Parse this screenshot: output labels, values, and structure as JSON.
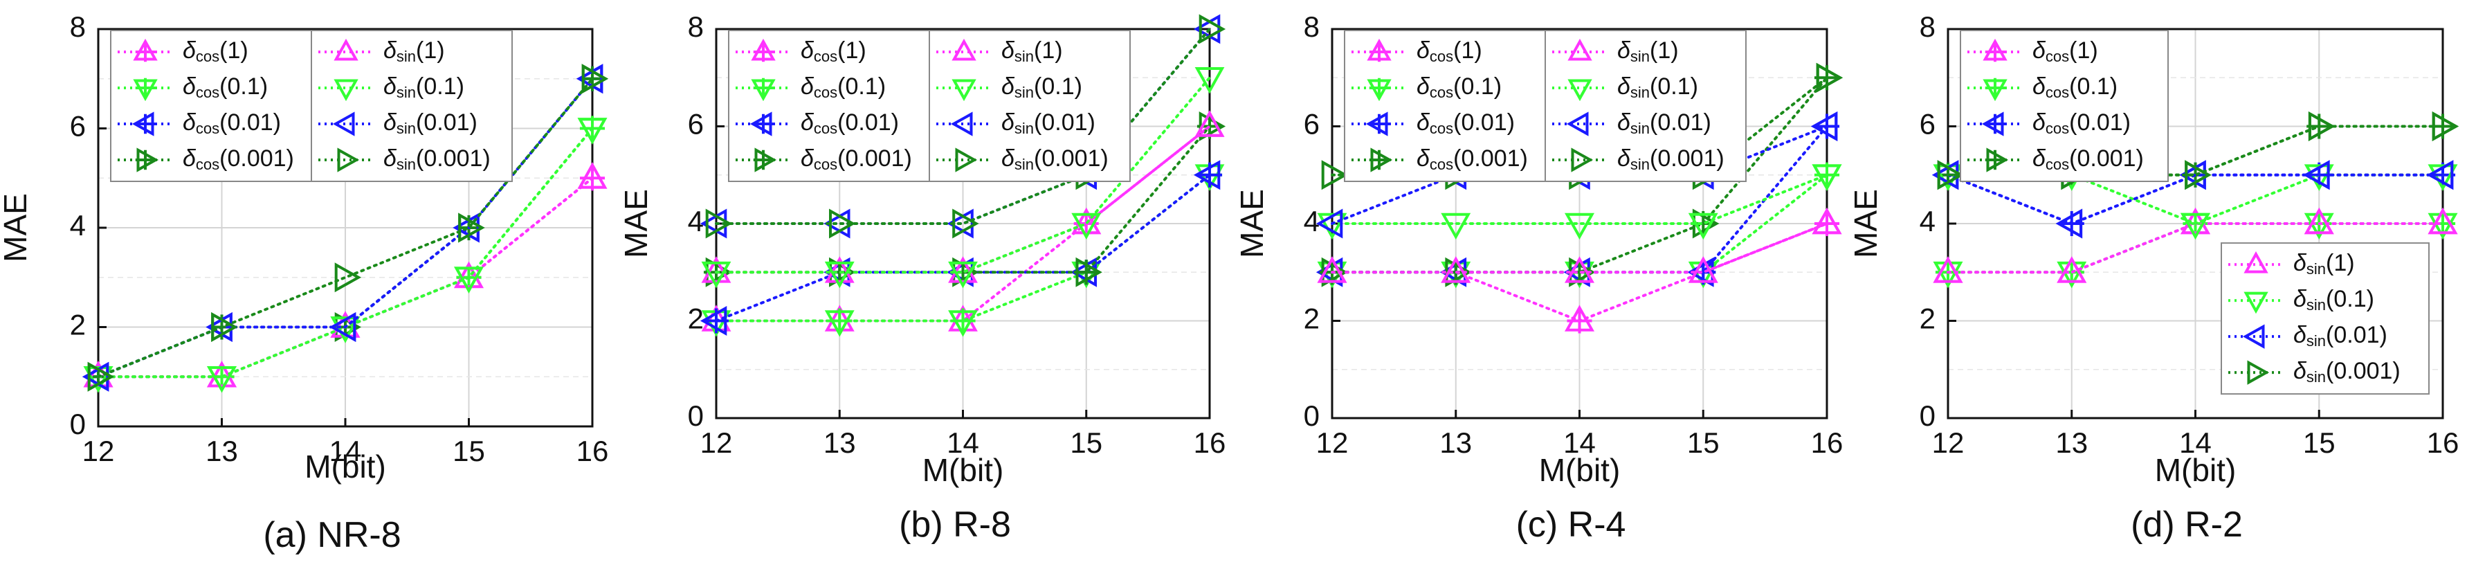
{
  "figure": {
    "colors": {
      "magenta": "#ff33ff",
      "lime": "#33ff33",
      "blue": "#1a1aff",
      "green": "#1a8a1a"
    }
  },
  "chart_data": [
    {
      "type": "line",
      "caption": "(a) NR-8",
      "xlabel": "M(bit)",
      "ylabel": "MAE",
      "x": [
        12,
        13,
        14,
        15,
        16
      ],
      "xlim": [
        12,
        16
      ],
      "ylim": [
        0,
        8
      ],
      "yticks": [
        0,
        2,
        4,
        6,
        8
      ],
      "grid": true,
      "legend_placement": "top-left",
      "legend_layout": "two-columns",
      "series": [
        {
          "name": "δcos(1)",
          "base": "δ",
          "sub": "cos",
          "param": "(1)",
          "color": "magenta",
          "marker": "up-plus",
          "values": [
            1,
            1,
            2,
            3,
            5
          ]
        },
        {
          "name": "δcos(0.1)",
          "base": "δ",
          "sub": "cos",
          "param": "(0.1)",
          "color": "lime",
          "marker": "down-plus",
          "values": [
            1,
            1,
            2,
            3,
            6
          ]
        },
        {
          "name": "δcos(0.01)",
          "base": "δ",
          "sub": "cos",
          "param": "(0.01)",
          "color": "blue",
          "marker": "left-plus",
          "values": [
            1,
            2,
            2,
            4,
            7
          ]
        },
        {
          "name": "δcos(0.001)",
          "base": "δ",
          "sub": "cos",
          "param": "(0.001)",
          "color": "green",
          "marker": "right-plus",
          "values": [
            1,
            2,
            2,
            4,
            7
          ]
        },
        {
          "name": "δsin(1)",
          "base": "δ",
          "sub": "sin",
          "param": "(1)",
          "color": "magenta",
          "marker": "up",
          "values": [
            1,
            1,
            2,
            3,
            5
          ]
        },
        {
          "name": "δsin(0.1)",
          "base": "δ",
          "sub": "sin",
          "param": "(0.1)",
          "color": "lime",
          "marker": "down",
          "values": [
            1,
            1,
            2,
            3,
            6
          ]
        },
        {
          "name": "δsin(0.01)",
          "base": "δ",
          "sub": "sin",
          "param": "(0.01)",
          "color": "blue",
          "marker": "left",
          "values": [
            1,
            2,
            2,
            4,
            7
          ]
        },
        {
          "name": "δsin(0.001)",
          "base": "δ",
          "sub": "sin",
          "param": "(0.001)",
          "color": "green",
          "marker": "right",
          "values": [
            1,
            2,
            3,
            4,
            7
          ]
        }
      ]
    },
    {
      "type": "line",
      "caption": "(b) R-8",
      "xlabel": "M(bit)",
      "ylabel": "MAE",
      "x": [
        12,
        13,
        14,
        15,
        16
      ],
      "xlim": [
        12,
        16
      ],
      "ylim": [
        0,
        8
      ],
      "yticks": [
        0,
        2,
        4,
        6,
        8
      ],
      "grid": true,
      "legend_placement": "top-left",
      "legend_layout": "two-columns",
      "series": [
        {
          "name": "δcos(1)",
          "base": "δ",
          "sub": "cos",
          "param": "(1)",
          "color": "magenta",
          "marker": "up-plus",
          "values": [
            2,
            2,
            2,
            4,
            6
          ]
        },
        {
          "name": "δcos(0.1)",
          "base": "δ",
          "sub": "cos",
          "param": "(0.1)",
          "color": "lime",
          "marker": "down-plus",
          "values": [
            2,
            2,
            2,
            3,
            5
          ]
        },
        {
          "name": "δcos(0.01)",
          "base": "δ",
          "sub": "cos",
          "param": "(0.01)",
          "color": "blue",
          "marker": "left-plus",
          "values": [
            2,
            3,
            3,
            3,
            5
          ]
        },
        {
          "name": "δcos(0.001)",
          "base": "δ",
          "sub": "cos",
          "param": "(0.001)",
          "color": "green",
          "marker": "right-plus",
          "values": [
            3,
            3,
            3,
            3,
            6
          ]
        },
        {
          "name": "δsin(1)",
          "base": "δ",
          "sub": "sin",
          "param": "(1)",
          "color": "magenta",
          "marker": "up",
          "values": [
            3,
            3,
            3,
            4,
            6
          ]
        },
        {
          "name": "δsin(0.1)",
          "base": "δ",
          "sub": "sin",
          "param": "(0.1)",
          "color": "lime",
          "marker": "down",
          "values": [
            3,
            3,
            3,
            4,
            7
          ]
        },
        {
          "name": "δsin(0.01)",
          "base": "δ",
          "sub": "sin",
          "param": "(0.01)",
          "color": "blue",
          "marker": "left",
          "values": [
            4,
            4,
            4,
            5,
            8
          ]
        },
        {
          "name": "δsin(0.001)",
          "base": "δ",
          "sub": "sin",
          "param": "(0.001)",
          "color": "green",
          "marker": "right",
          "values": [
            4,
            4,
            4,
            5,
            8
          ]
        }
      ]
    },
    {
      "type": "line",
      "caption": "(c) R-4",
      "xlabel": "M(bit)",
      "ylabel": "MAE",
      "x": [
        12,
        13,
        14,
        15,
        16
      ],
      "xlim": [
        12,
        16
      ],
      "ylim": [
        0,
        8
      ],
      "yticks": [
        0,
        2,
        4,
        6,
        8
      ],
      "grid": true,
      "legend_placement": "top-left",
      "legend_layout": "two-columns",
      "series": [
        {
          "name": "δcos(1)",
          "base": "δ",
          "sub": "cos",
          "param": "(1)",
          "color": "magenta",
          "marker": "up-plus",
          "values": [
            3,
            3,
            2,
            3,
            4
          ]
        },
        {
          "name": "δcos(0.1)",
          "base": "δ",
          "sub": "cos",
          "param": "(0.1)",
          "color": "lime",
          "marker": "down-plus",
          "values": [
            3,
            3,
            3,
            3,
            5
          ]
        },
        {
          "name": "δcos(0.01)",
          "base": "δ",
          "sub": "cos",
          "param": "(0.01)",
          "color": "blue",
          "marker": "left-plus",
          "values": [
            3,
            3,
            3,
            3,
            6
          ]
        },
        {
          "name": "δcos(0.001)",
          "base": "δ",
          "sub": "cos",
          "param": "(0.001)",
          "color": "green",
          "marker": "right-plus",
          "values": [
            3,
            3,
            3,
            4,
            7
          ]
        },
        {
          "name": "δsin(1)",
          "base": "δ",
          "sub": "sin",
          "param": "(1)",
          "color": "magenta",
          "marker": "up",
          "values": [
            3,
            3,
            3,
            3,
            4
          ]
        },
        {
          "name": "δsin(0.1)",
          "base": "δ",
          "sub": "sin",
          "param": "(0.1)",
          "color": "lime",
          "marker": "down",
          "values": [
            4,
            4,
            4,
            4,
            5
          ]
        },
        {
          "name": "δsin(0.01)",
          "base": "δ",
          "sub": "sin",
          "param": "(0.01)",
          "color": "blue",
          "marker": "left",
          "values": [
            4,
            5,
            5,
            5,
            6
          ]
        },
        {
          "name": "δsin(0.001)",
          "base": "δ",
          "sub": "sin",
          "param": "(0.001)",
          "color": "green",
          "marker": "right",
          "values": [
            5,
            5,
            5,
            5,
            7
          ]
        }
      ]
    },
    {
      "type": "line",
      "caption": "(d) R-2",
      "xlabel": "M(bit)",
      "ylabel": "MAE",
      "x": [
        12,
        13,
        14,
        15,
        16
      ],
      "xlim": [
        12,
        16
      ],
      "ylim": [
        0,
        8
      ],
      "yticks": [
        0,
        2,
        4,
        6,
        8
      ],
      "grid": true,
      "legend_placement": "split: top-left (cos) and bottom-right (sin)",
      "legend_layout": "two-boxes",
      "series": [
        {
          "name": "δcos(1)",
          "base": "δ",
          "sub": "cos",
          "param": "(1)",
          "color": "magenta",
          "marker": "up-plus",
          "values": [
            3,
            3,
            4,
            4,
            4
          ]
        },
        {
          "name": "δcos(0.1)",
          "base": "δ",
          "sub": "cos",
          "param": "(0.1)",
          "color": "lime",
          "marker": "down-plus",
          "values": [
            3,
            3,
            4,
            4,
            4
          ]
        },
        {
          "name": "δcos(0.01)",
          "base": "δ",
          "sub": "cos",
          "param": "(0.01)",
          "color": "blue",
          "marker": "left-plus",
          "values": [
            5,
            4,
            5,
            5,
            5
          ]
        },
        {
          "name": "δcos(0.001)",
          "base": "δ",
          "sub": "cos",
          "param": "(0.001)",
          "color": "green",
          "marker": "right-plus",
          "values": [
            5,
            5,
            5,
            6,
            6
          ]
        },
        {
          "name": "δsin(1)",
          "base": "δ",
          "sub": "sin",
          "param": "(1)",
          "color": "magenta",
          "marker": "up",
          "values": [
            3,
            3,
            4,
            4,
            4
          ]
        },
        {
          "name": "δsin(0.1)",
          "base": "δ",
          "sub": "sin",
          "param": "(0.1)",
          "color": "lime",
          "marker": "down",
          "values": [
            5,
            5,
            4,
            5,
            5
          ]
        },
        {
          "name": "δsin(0.01)",
          "base": "δ",
          "sub": "sin",
          "param": "(0.01)",
          "color": "blue",
          "marker": "left",
          "values": [
            5,
            4,
            5,
            5,
            5
          ]
        },
        {
          "name": "δsin(0.001)",
          "base": "δ",
          "sub": "sin",
          "param": "(0.001)",
          "color": "green",
          "marker": "right",
          "values": [
            5,
            5,
            5,
            6,
            6
          ]
        }
      ]
    }
  ]
}
